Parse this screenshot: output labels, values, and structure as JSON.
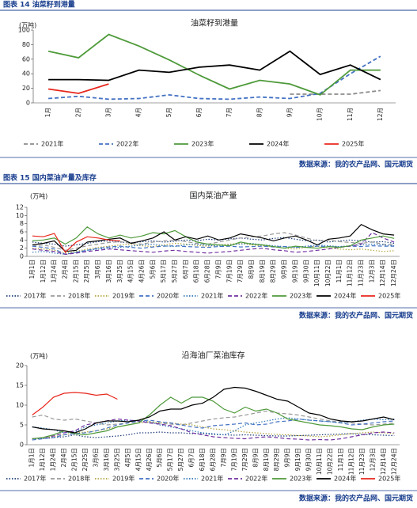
{
  "headers": [
    "图表 14  油菜籽到港量",
    "图表 15  国内菜油产量及库存"
  ],
  "sources": [
    "数据来源：我的农产品网、国元期货",
    "数据来源：我的农产品网、国元期货",
    "数据来源：我的农产品网、国元期货"
  ],
  "chart_data": [
    {
      "type": "line",
      "title": "油菜籽到港量",
      "y_unit": "(万吨)",
      "categories": [
        "1月",
        "2月",
        "3月",
        "4月",
        "5月",
        "6月",
        "7月",
        "8月",
        "9月",
        "10月",
        "11月",
        "12月"
      ],
      "ylim": [
        0,
        100
      ],
      "yticks": [
        0,
        20,
        40,
        60,
        80,
        100
      ],
      "series": [
        {
          "name": "2021年",
          "color": "#8c8c8c",
          "dash": "dashed",
          "values": [
            null,
            null,
            null,
            null,
            null,
            null,
            null,
            null,
            12,
            12,
            12,
            17
          ]
        },
        {
          "name": "2022年",
          "color": "#4472c4",
          "dash": "dashed",
          "values": [
            6,
            9,
            5,
            6,
            11,
            6,
            5,
            8,
            6,
            13,
            40,
            64
          ]
        },
        {
          "name": "2023年",
          "color": "#4e9a3a",
          "dash": "solid",
          "values": [
            71,
            62,
            94,
            78,
            59,
            38,
            19,
            31,
            26,
            11,
            45,
            45
          ]
        },
        {
          "name": "2024年",
          "color": "#000000",
          "dash": "solid",
          "values": [
            32,
            32,
            31,
            45,
            42,
            49,
            52,
            45,
            71,
            39,
            52,
            32
          ]
        },
        {
          "name": "2025年",
          "color": "#e8261c",
          "dash": "solid",
          "values": [
            19,
            13,
            26,
            null,
            null,
            null,
            null,
            null,
            null,
            null,
            null,
            null
          ]
        }
      ]
    },
    {
      "type": "line",
      "title": "国内菜油产量",
      "y_unit": "(万吨)",
      "categories": [
        "1月1日",
        "1月12日",
        "1月24日",
        "2月4日",
        "2月15日",
        "2月25日",
        "3月6日",
        "3月16日",
        "3月25日",
        "4月15日",
        "4月26日",
        "5月6日",
        "5月17日",
        "5月27日",
        "6月7日",
        "6月18日",
        "6月28日",
        "7月9日",
        "7月19日",
        "7月29日",
        "8月9日",
        "8月19日",
        "8月29日",
        "9月9日",
        "9月19日",
        "9月30日",
        "10月11日",
        "10月22日",
        "11月1日",
        "11月12日",
        "11月23日",
        "12月3日",
        "12月14日",
        "12月24日"
      ],
      "ylim": [
        0,
        12
      ],
      "yticks": [
        0,
        2,
        4,
        6,
        8,
        10,
        12
      ],
      "series": [
        {
          "name": "2017年",
          "color": "#1f3d7a",
          "dash": "dotted",
          "values": [
            3.5,
            3.2,
            3.0,
            2.5,
            2.8,
            3.2,
            3.6,
            3.8,
            3.5,
            3.3,
            3.6,
            3.8,
            3.5,
            3.7,
            4.0,
            3.8,
            4.2,
            4.0,
            4.3,
            4.5,
            4.2,
            4.0,
            4.4,
            4.6,
            4.2,
            3.8,
            4.0,
            3.5,
            3.8,
            4.0,
            3.8,
            3.5,
            3.6,
            3.2
          ]
        },
        {
          "name": "2018年",
          "color": "#999999",
          "dash": "dashed",
          "values": [
            2.5,
            2.8,
            2.2,
            1.5,
            2.0,
            2.6,
            3.0,
            3.4,
            3.6,
            3.2,
            3.0,
            3.5,
            3.8,
            4.0,
            3.6,
            3.2,
            3.0,
            3.5,
            4.0,
            4.5,
            4.8,
            5.0,
            5.5,
            5.8,
            5.2,
            4.5,
            3.8,
            4.0,
            3.6,
            3.4,
            3.2,
            3.5,
            3.0,
            2.8
          ]
        },
        {
          "name": "2019年",
          "color": "#b5a642",
          "dash": "dotted",
          "values": [
            2.0,
            1.8,
            1.5,
            0.8,
            1.2,
            1.8,
            2.2,
            2.5,
            2.8,
            3.0,
            2.6,
            2.4,
            2.8,
            3.2,
            3.0,
            2.7,
            2.5,
            2.8,
            3.0,
            3.2,
            2.8,
            2.6,
            2.4,
            2.0,
            1.8,
            2.2,
            2.5,
            2.0,
            1.8,
            1.6,
            1.8,
            1.5,
            1.2,
            1.4
          ]
        },
        {
          "name": "2020年",
          "color": "#4472c4",
          "dash": "dashed",
          "values": [
            2.5,
            2.2,
            1.8,
            0.5,
            1.0,
            1.5,
            2.0,
            2.3,
            2.5,
            2.2,
            2.0,
            2.3,
            2.5,
            2.6,
            2.4,
            2.3,
            2.2,
            2.4,
            2.5,
            2.3,
            2.4,
            2.5,
            2.3,
            2.4,
            2.2,
            2.3,
            2.5,
            2.4,
            2.3,
            2.5,
            2.4,
            2.6,
            2.5,
            2.5
          ]
        },
        {
          "name": "2021年",
          "color": "#2e75b6",
          "dash": "dotted",
          "values": [
            1.0,
            1.2,
            0.8,
            0.5,
            1.0,
            1.5,
            1.8,
            2.0,
            2.2,
            2.5,
            2.8,
            3.0,
            2.6,
            2.4,
            2.8,
            3.0,
            2.7,
            2.5,
            2.8,
            3.0,
            3.2,
            2.8,
            2.6,
            2.4,
            2.2,
            2.5,
            2.8,
            2.6,
            2.4,
            2.6,
            2.8,
            3.0,
            2.8,
            2.6
          ]
        },
        {
          "name": "2022年",
          "color": "#7030a0",
          "dash": "dashed",
          "values": [
            1.8,
            1.5,
            1.2,
            0.5,
            0.8,
            1.2,
            1.5,
            1.8,
            1.6,
            1.4,
            1.2,
            1.0,
            1.3,
            1.5,
            1.2,
            1.0,
            0.8,
            1.0,
            1.2,
            1.5,
            1.8,
            2.0,
            1.6,
            1.4,
            1.0,
            1.2,
            1.5,
            1.8,
            2.2,
            2.5,
            3.0,
            5.8,
            4.5,
            3.5
          ]
        },
        {
          "name": "2023年",
          "color": "#4e9a3a",
          "dash": "solid",
          "values": [
            3.8,
            4.0,
            4.5,
            3.0,
            4.5,
            7.2,
            5.5,
            4.5,
            5.2,
            4.5,
            5.0,
            5.8,
            5.5,
            6.3,
            4.8,
            3.5,
            3.0,
            2.8,
            2.6,
            3.5,
            3.0,
            2.8,
            2.4,
            2.0,
            2.5,
            2.2,
            2.0,
            2.4,
            2.2,
            2.6,
            4.0,
            4.5,
            5.0,
            4.4
          ]
        },
        {
          "name": "2024年",
          "color": "#000000",
          "dash": "solid",
          "values": [
            2.8,
            3.2,
            3.8,
            1.2,
            1.5,
            3.5,
            3.8,
            4.2,
            4.5,
            3.2,
            3.8,
            4.5,
            6.0,
            4.0,
            4.8,
            4.2,
            5.0,
            4.0,
            4.5,
            5.5,
            5.0,
            4.5,
            3.8,
            4.5,
            5.0,
            4.0,
            2.8,
            4.2,
            4.5,
            5.0,
            7.8,
            6.5,
            5.5,
            5.2
          ]
        },
        {
          "name": "2025年",
          "color": "#e8261c",
          "dash": "solid",
          "values": [
            5.0,
            4.8,
            5.6,
            1.0,
            3.5,
            4.8,
            4.5,
            4.0,
            3.8,
            null,
            null,
            null,
            null,
            null,
            null,
            null,
            null,
            null,
            null,
            null,
            null,
            null,
            null,
            null,
            null,
            null,
            null,
            null,
            null,
            null,
            null,
            null,
            null,
            null
          ]
        }
      ]
    },
    {
      "type": "line",
      "title": "沿海油厂菜油库存",
      "y_unit": "(万吨)",
      "categories": [
        "1月1日",
        "1月12日",
        "1月24日",
        "2月4日",
        "2月15日",
        "2月25日",
        "3月6日",
        "3月16日",
        "3月25日",
        "4月5日",
        "4月15日",
        "4月26日",
        "5月6日",
        "5月17日",
        "5月27日",
        "6月7日",
        "6月18日",
        "6月28日",
        "7月9日",
        "7月19日",
        "7月29日",
        "8月9日",
        "8月19日",
        "8月29日",
        "9月9日",
        "9月19日",
        "9月30日",
        "10月11日",
        "10月22日",
        "11月1日",
        "11月12日",
        "11月23日",
        "12月3日",
        "12月14日",
        "12月24日"
      ],
      "ylim": [
        0,
        20
      ],
      "yticks": [
        0,
        5,
        10,
        15,
        20
      ],
      "series": [
        {
          "name": "2017年",
          "color": "#1f3d7a",
          "dash": "dotted",
          "values": [
            1.5,
            1.5,
            1.8,
            2.0,
            2.5,
            2.0,
            1.8,
            2.0,
            2.2,
            2.5,
            3.0,
            3.0,
            3.2,
            3.0,
            3.0,
            2.8,
            2.8,
            2.6,
            2.5,
            2.4,
            2.5,
            2.4,
            2.3,
            2.2,
            2.2,
            2.3,
            2.4,
            2.5,
            2.6,
            2.7,
            2.8,
            2.6,
            2.5,
            2.4,
            2.3
          ]
        },
        {
          "name": "2018年",
          "color": "#999999",
          "dash": "dashed",
          "values": [
            7.0,
            7.5,
            6.5,
            6.2,
            6.5,
            6.0,
            5.5,
            5.0,
            5.2,
            5.5,
            5.8,
            5.6,
            5.4,
            5.2,
            5.0,
            5.5,
            6.0,
            6.5,
            6.8,
            7.0,
            7.5,
            8.0,
            8.5,
            8.0,
            7.8,
            7.5,
            7.0,
            6.5,
            6.0,
            5.8,
            5.5,
            5.2,
            5.0,
            5.2,
            5.5
          ]
        },
        {
          "name": "2019年",
          "color": "#b5a642",
          "dash": "dotted",
          "values": [
            1.5,
            1.8,
            2.0,
            2.5,
            3.0,
            3.2,
            3.5,
            4.0,
            4.5,
            5.0,
            5.5,
            5.8,
            5.6,
            5.5,
            5.2,
            5.0,
            4.5,
            4.0,
            3.8,
            3.5,
            3.2,
            3.0,
            2.8,
            2.6,
            2.5,
            2.3,
            2.2,
            2.0,
            2.2,
            2.5,
            2.8,
            3.0,
            3.2,
            3.0,
            2.8
          ]
        },
        {
          "name": "2020年",
          "color": "#4472c4",
          "dash": "dashed",
          "values": [
            1.2,
            1.5,
            1.8,
            2.5,
            2.8,
            3.0,
            3.5,
            4.2,
            5.0,
            5.5,
            6.0,
            6.2,
            5.8,
            5.5,
            5.0,
            4.5,
            4.2,
            4.8,
            5.0,
            5.2,
            5.5,
            5.0,
            5.2,
            5.8,
            6.0,
            6.5,
            6.2,
            6.0,
            5.8,
            5.5,
            5.0,
            5.2,
            5.5,
            5.8,
            6.0
          ]
        },
        {
          "name": "2021年",
          "color": "#2e75b6",
          "dash": "dotted",
          "values": [
            4.5,
            4.2,
            3.8,
            3.0,
            3.2,
            4.5,
            5.0,
            5.5,
            6.0,
            6.2,
            6.0,
            5.8,
            5.0,
            4.5,
            4.0,
            3.5,
            3.0,
            2.8,
            2.5,
            3.5,
            5.0,
            5.5,
            6.0,
            6.5,
            6.8,
            6.5,
            6.2,
            6.0,
            5.8,
            5.5,
            5.8,
            6.2,
            6.5,
            6.3,
            6.5
          ]
        },
        {
          "name": "2022年",
          "color": "#7030a0",
          "dash": "dashed",
          "values": [
            1.5,
            1.8,
            2.2,
            3.0,
            3.5,
            5.0,
            5.5,
            6.0,
            6.5,
            6.2,
            6.0,
            5.5,
            5.2,
            4.8,
            4.0,
            3.0,
            2.5,
            2.0,
            1.8,
            1.6,
            1.5,
            1.8,
            2.0,
            1.8,
            1.5,
            1.4,
            1.2,
            1.3,
            1.2,
            1.5,
            2.0,
            2.5,
            3.0,
            3.2,
            3.0
          ]
        },
        {
          "name": "2023年",
          "color": "#4e9a3a",
          "dash": "solid",
          "values": [
            1.5,
            1.8,
            2.5,
            3.5,
            2.8,
            2.5,
            3.0,
            3.5,
            4.5,
            5.0,
            5.5,
            7.5,
            10.0,
            12.0,
            10.5,
            12.0,
            12.0,
            11.0,
            9.0,
            8.0,
            9.5,
            8.5,
            9.0,
            8.0,
            6.5,
            6.0,
            5.5,
            5.0,
            4.8,
            4.5,
            4.0,
            3.8,
            4.5,
            5.0,
            5.2
          ]
        },
        {
          "name": "2024年",
          "color": "#000000",
          "dash": "solid",
          "values": [
            4.5,
            4.0,
            3.8,
            3.5,
            3.0,
            4.0,
            5.5,
            6.0,
            6.0,
            5.8,
            6.2,
            7.0,
            8.5,
            9.0,
            9.0,
            10.0,
            10.5,
            12.0,
            14.0,
            14.5,
            14.3,
            13.5,
            12.5,
            11.5,
            11.0,
            9.5,
            8.0,
            7.5,
            6.5,
            6.0,
            5.8,
            6.0,
            6.5,
            7.0,
            6.3
          ]
        },
        {
          "name": "2025年",
          "color": "#e8261c",
          "dash": "solid",
          "values": [
            7.5,
            9.5,
            12.0,
            13.0,
            13.2,
            13.0,
            12.5,
            12.8,
            11.5,
            null,
            null,
            null,
            null,
            null,
            null,
            null,
            null,
            null,
            null,
            null,
            null,
            null,
            null,
            null,
            null,
            null,
            null,
            null,
            null,
            null,
            null,
            null,
            null,
            null,
            null
          ]
        }
      ]
    }
  ]
}
